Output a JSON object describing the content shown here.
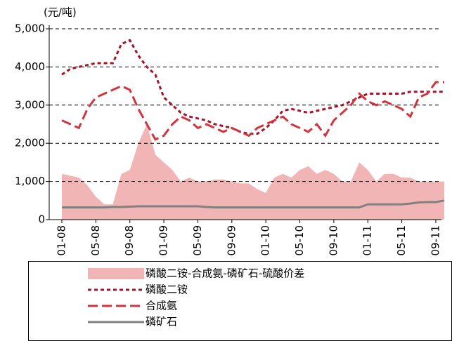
{
  "chart_data": {
    "type": "line",
    "unit_label": "(元/吨)",
    "categories": [
      "01-08",
      null,
      null,
      null,
      "05-08",
      null,
      null,
      null,
      "09-08",
      null,
      null,
      null,
      "01-09",
      null,
      null,
      null,
      "05-09",
      null,
      null,
      null,
      "09-09",
      null,
      null,
      null,
      "01-10",
      null,
      null,
      null,
      "05-10",
      null,
      null,
      null,
      "09-10",
      null,
      null,
      null,
      "01-11",
      null,
      null,
      null,
      "05-11",
      null,
      null,
      null,
      "09-11",
      null
    ],
    "series": [
      {
        "name": "磷酸二铵-合成氨-磷矿石-硫酸价差",
        "color": "#f2b5b5",
        "kind": "area",
        "values": [
          1200,
          1150,
          1100,
          900,
          600,
          400,
          400,
          1200,
          1300,
          2000,
          2500,
          1700,
          1500,
          1300,
          1000,
          1100,
          1000,
          1000,
          1050,
          1050,
          1000,
          950,
          950,
          800,
          700,
          1100,
          1200,
          1100,
          1300,
          1400,
          1200,
          1300,
          1200,
          1000,
          1000,
          1500,
          1300,
          1000,
          1200,
          1200,
          1100,
          1100,
          1000,
          1000,
          1000,
          1000
        ]
      },
      {
        "name": "磷酸二铵",
        "color": "#a3142c",
        "kind": "dotted",
        "values": [
          3800,
          3950,
          4000,
          4050,
          4100,
          4100,
          4100,
          4600,
          4700,
          4300,
          4000,
          3800,
          3200,
          3000,
          2800,
          2700,
          2650,
          2600,
          2500,
          2450,
          2400,
          2300,
          2250,
          2250,
          2400,
          2600,
          2850,
          2900,
          2850,
          2800,
          2850,
          2900,
          2950,
          3000,
          3100,
          3200,
          3300,
          3300,
          3300,
          3300,
          3300,
          3350,
          3350,
          3350,
          3350,
          3350
        ]
      },
      {
        "name": "合成氨",
        "color": "#d0353f",
        "kind": "dashed",
        "values": [
          2600,
          2500,
          2400,
          2900,
          3200,
          3300,
          3400,
          3500,
          3400,
          2900,
          2500,
          2100,
          2200,
          2500,
          2700,
          2600,
          2400,
          2500,
          2400,
          2300,
          2400,
          2300,
          2200,
          2400,
          2500,
          2600,
          2700,
          2500,
          2400,
          2300,
          2500,
          2200,
          2600,
          2800,
          3000,
          3300,
          3100,
          3000,
          3100,
          3000,
          2900,
          2700,
          3200,
          3300,
          3600,
          3600
        ]
      },
      {
        "name": "磷矿石",
        "color": "#808080",
        "kind": "solid",
        "values": [
          320,
          320,
          320,
          320,
          320,
          320,
          330,
          330,
          340,
          350,
          350,
          350,
          350,
          350,
          350,
          350,
          350,
          330,
          320,
          320,
          320,
          320,
          320,
          320,
          320,
          320,
          320,
          320,
          320,
          320,
          320,
          320,
          320,
          320,
          320,
          320,
          400,
          400,
          400,
          400,
          400,
          420,
          450,
          460,
          460,
          500
        ]
      }
    ],
    "ylim": [
      0,
      5000
    ],
    "yticks": [
      0,
      {
        "value": 1000,
        "label": "1,000"
      },
      {
        "value": 2000,
        "label": "2,000"
      },
      {
        "value": 3000,
        "label": "3,000"
      },
      {
        "value": 4000,
        "label": "4,000"
      },
      {
        "value": 5000,
        "label": "5,000"
      }
    ],
    "grid": true
  }
}
